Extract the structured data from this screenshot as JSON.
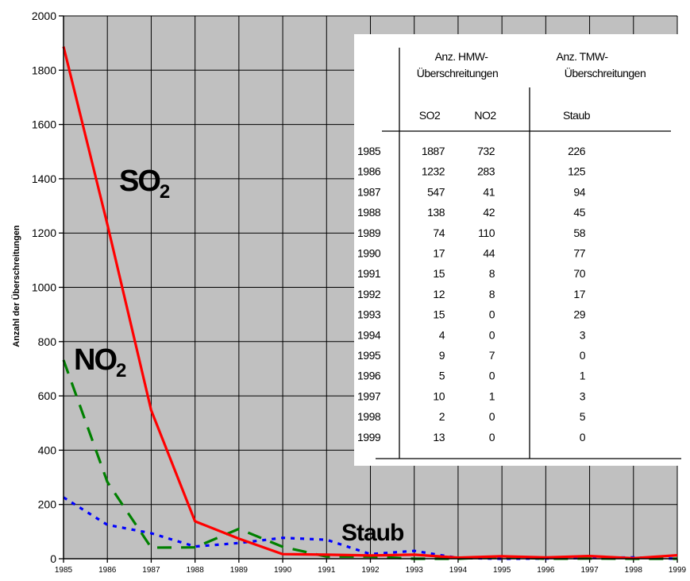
{
  "chart_data": {
    "type": "line",
    "x": [
      1985,
      1986,
      1987,
      1988,
      1989,
      1990,
      1991,
      1992,
      1993,
      1994,
      1995,
      1996,
      1997,
      1998,
      1999
    ],
    "xticks": [
      "1985",
      "1986",
      "1987",
      "1988",
      "1989",
      "1990",
      "1991",
      "1992",
      "1993",
      "1994",
      "1995",
      "1996",
      "1997",
      "1998",
      "1999"
    ],
    "ylim": [
      0,
      2000
    ],
    "yticks": [
      "0",
      "200",
      "400",
      "600",
      "800",
      "1000",
      "1200",
      "1400",
      "1600",
      "1800",
      "2000"
    ],
    "ylabel": "Anzahl der Überschreitungen",
    "grid": true,
    "series": [
      {
        "name": "SO",
        "sub": "2",
        "color": "#ff0000",
        "dash": "solid",
        "values": [
          1887,
          1232,
          547,
          138,
          74,
          17,
          15,
          12,
          15,
          4,
          9,
          5,
          10,
          2,
          13
        ]
      },
      {
        "name": "NO",
        "sub": "2",
        "color": "#008000",
        "dash": "dashed",
        "values": [
          732,
          283,
          41,
          42,
          110,
          44,
          8,
          8,
          0,
          0,
          7,
          0,
          1,
          0,
          0
        ]
      },
      {
        "name": "Staub",
        "sub": "",
        "color": "#0000ff",
        "dash": "dotted",
        "values": [
          226,
          125,
          94,
          45,
          58,
          77,
          70,
          17,
          29,
          3,
          0,
          1,
          3,
          5,
          0
        ]
      }
    ],
    "table": {
      "header_hmw": [
        "Anz. HMW-",
        "Überschreitungen"
      ],
      "header_tmw": [
        "Anz. TMW-",
        "Überschreitungen"
      ],
      "col_so2": "SO2",
      "col_no2": "NO2",
      "col_staub": "Staub",
      "rows": [
        [
          "1985",
          "1887",
          "732",
          "226"
        ],
        [
          "1986",
          "1232",
          "283",
          "125"
        ],
        [
          "1987",
          "547",
          "41",
          "94"
        ],
        [
          "1988",
          "138",
          "42",
          "45"
        ],
        [
          "1989",
          "74",
          "110",
          "58"
        ],
        [
          "1990",
          "17",
          "44",
          "77"
        ],
        [
          "1991",
          "15",
          "8",
          "70"
        ],
        [
          "1992",
          "12",
          "8",
          "17"
        ],
        [
          "1993",
          "15",
          "0",
          "29"
        ],
        [
          "1994",
          "4",
          "0",
          "3"
        ],
        [
          "1995",
          "9",
          "7",
          "0"
        ],
        [
          "1996",
          "5",
          "0",
          "1"
        ],
        [
          "1997",
          "10",
          "1",
          "3"
        ],
        [
          "1998",
          "2",
          "0",
          "5"
        ],
        [
          "1999",
          "13",
          "0",
          "0"
        ]
      ]
    }
  }
}
